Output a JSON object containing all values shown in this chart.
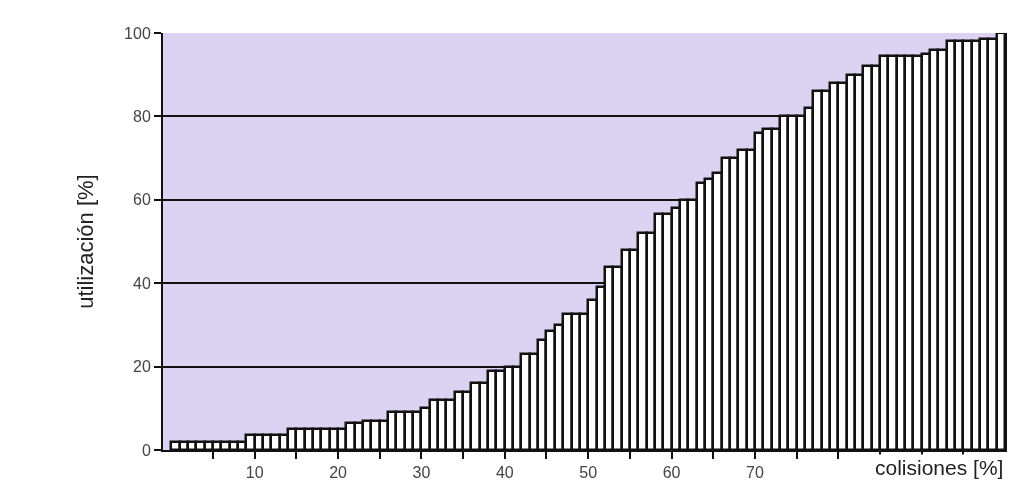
{
  "chart_data": {
    "type": "bar",
    "xlabel": "colisiones [%]",
    "ylabel": "utilización [%]",
    "x": [
      0.5,
      1.5,
      2.5,
      3.5,
      4.5,
      5.5,
      6.5,
      7.5,
      8.5,
      9.5,
      10.5,
      11.5,
      12.5,
      13.5,
      14.5,
      15.5,
      16.5,
      17.5,
      18.5,
      19.5,
      20.5,
      21.5,
      22.5,
      23.5,
      24.5,
      25.5,
      26.5,
      27.5,
      28.5,
      29.5,
      30.5,
      31.5,
      32.5,
      33.5,
      34.5,
      35.5,
      36.5,
      37.5,
      38.5,
      39.5,
      40.5,
      41.5,
      42.5,
      43.5,
      44.5,
      45.5,
      46.5,
      47.5,
      48.5,
      49.5,
      50.5,
      51.5,
      52.5,
      53.5,
      54.5,
      55.5,
      56.5,
      57.5,
      58.5,
      59.5,
      60.5,
      61.5,
      62.5,
      63.5,
      64.5,
      65.5,
      66.5,
      67.5,
      68.5,
      69.5,
      70.5,
      71.5,
      72.5,
      73.5,
      74.5,
      75.5,
      76.5,
      77.5,
      78.5,
      79.5,
      80.5,
      81.5,
      82.5,
      83.5,
      84.5,
      85.5,
      86.5,
      87.5,
      88.5,
      89.5,
      90.5,
      91.5,
      92.5,
      93.5,
      94.5,
      95.5,
      96.5,
      97.5,
      98.5,
      99.5
    ],
    "values": [
      2,
      2,
      2,
      2,
      2,
      2,
      2,
      2,
      2,
      3.5,
      3.5,
      3.5,
      3.5,
      3.5,
      5,
      5,
      5,
      5,
      5,
      5,
      5,
      6.5,
      6.5,
      7,
      7,
      7,
      9,
      9,
      9,
      9,
      10,
      12,
      12,
      12,
      14,
      14,
      16,
      16,
      19,
      19,
      20,
      20,
      23,
      23,
      26.5,
      28.5,
      30,
      32.5,
      32.5,
      32.5,
      36,
      39,
      44,
      44,
      48,
      48,
      52,
      52,
      56.5,
      56.5,
      58,
      60,
      60,
      64,
      65,
      66.5,
      70,
      70,
      72,
      72,
      76,
      77,
      77,
      80,
      80,
      80,
      82,
      86,
      86,
      88,
      88,
      90,
      90,
      92,
      92,
      94.5,
      94.5,
      94.5,
      94.5,
      94.5,
      95,
      96,
      96,
      98,
      98,
      98,
      98,
      98.5,
      98.5,
      100
    ],
    "color": "#ffffff",
    "xlim": [
      -1,
      100
    ],
    "xticks": [
      {
        "value": 5,
        "label": null
      },
      10,
      {
        "value": 15,
        "label": null
      },
      20,
      {
        "value": 25,
        "label": null
      },
      30,
      {
        "value": 35,
        "label": null
      },
      40,
      {
        "value": 45,
        "label": null
      },
      50,
      {
        "value": 55,
        "label": null
      },
      60,
      {
        "value": 65,
        "label": null
      },
      70,
      {
        "value": 75,
        "label": null
      },
      {
        "value": 80,
        "label": null
      },
      {
        "value": 85,
        "label": null
      },
      {
        "value": 90,
        "label": null
      },
      {
        "value": 95,
        "label": null
      }
    ],
    "ylim": [
      0,
      100
    ],
    "yticks": [
      0,
      20,
      40,
      60,
      80,
      100
    ],
    "grid": "y"
  }
}
